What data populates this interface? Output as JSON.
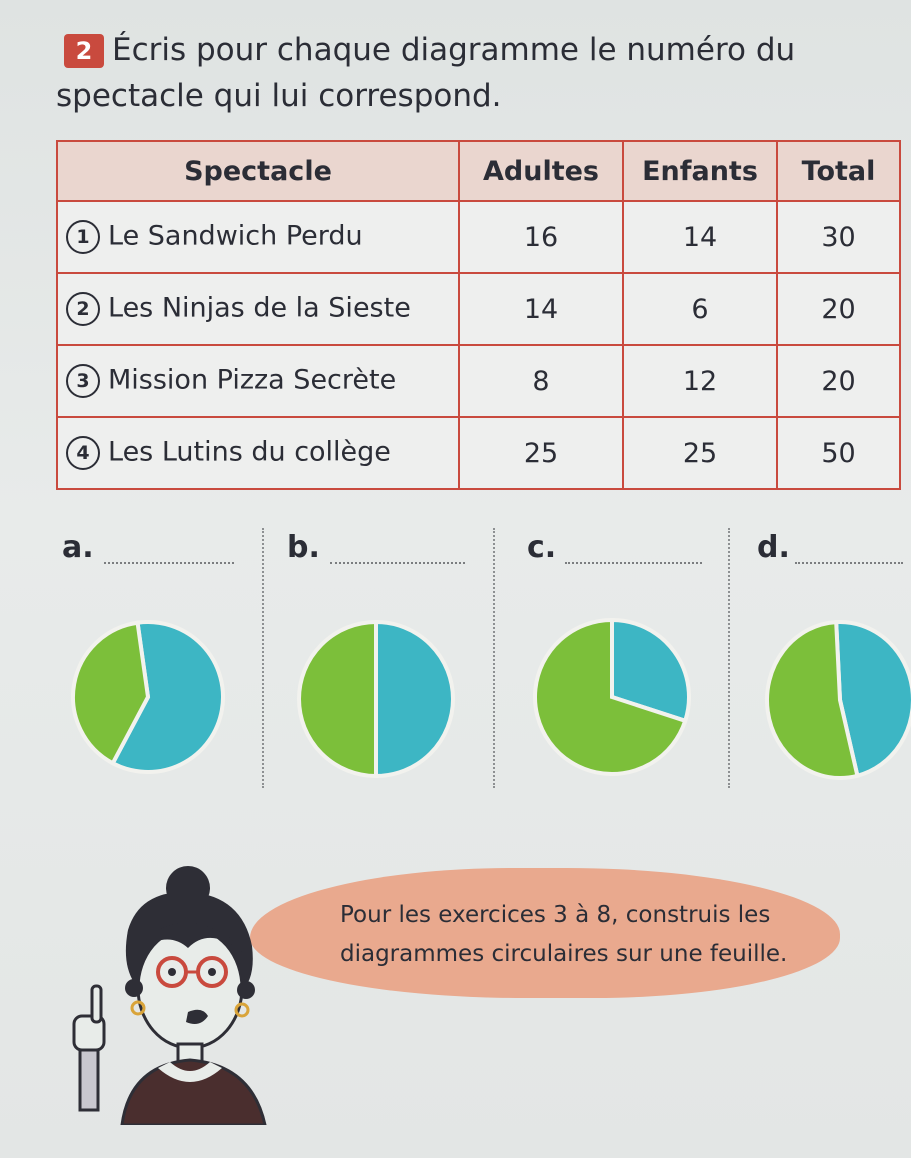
{
  "exercise": {
    "number": "2",
    "instruction_line1": "Écris pour chaque diagramme le numéro du",
    "instruction_line2": "spectacle qui lui correspond."
  },
  "table": {
    "headers": [
      "Spectacle",
      "Adultes",
      "Enfants",
      "Total"
    ],
    "rows": [
      {
        "num": "1",
        "name": "Le Sandwich Perdu",
        "adultes": "16",
        "enfants": "14",
        "total": "30"
      },
      {
        "num": "2",
        "name": "Les Ninjas de la Sieste",
        "adultes": "14",
        "enfants": "6",
        "total": "20"
      },
      {
        "num": "3",
        "name": "Mission Pizza Secrète",
        "adultes": "8",
        "enfants": "12",
        "total": "20"
      },
      {
        "num": "4",
        "name": "Les Lutins du collège",
        "adultes": "25",
        "enfants": "25",
        "total": "50"
      }
    ]
  },
  "charts": [
    {
      "label": "a.",
      "answer": ""
    },
    {
      "label": "b.",
      "answer": ""
    },
    {
      "label": "c.",
      "answer": ""
    },
    {
      "label": "d.",
      "answer": ""
    }
  ],
  "chart_data": [
    {
      "type": "pie",
      "title": "a.",
      "values": [
        0.6,
        0.4
      ],
      "colors": [
        "#3db6c4",
        "#7cbf3a"
      ]
    },
    {
      "type": "pie",
      "title": "b.",
      "values": [
        0.5,
        0.5
      ],
      "colors": [
        "#3db6c4",
        "#7cbf3a"
      ]
    },
    {
      "type": "pie",
      "title": "c.",
      "values": [
        0.3,
        0.7
      ],
      "colors": [
        "#3db6c4",
        "#7cbf3a"
      ]
    },
    {
      "type": "pie",
      "title": "d.",
      "values": [
        0.47,
        0.53
      ],
      "colors": [
        "#3db6c4",
        "#7cbf3a"
      ]
    }
  ],
  "bubble": {
    "line1": "Pour les exercices 3 à 8, construis les",
    "line2": "diagrammes circulaires sur une feuille."
  },
  "colors": {
    "accent": "#c94a3e",
    "teal": "#3db6c4",
    "green": "#7cbf3a",
    "bubble": "#e9a98e"
  }
}
